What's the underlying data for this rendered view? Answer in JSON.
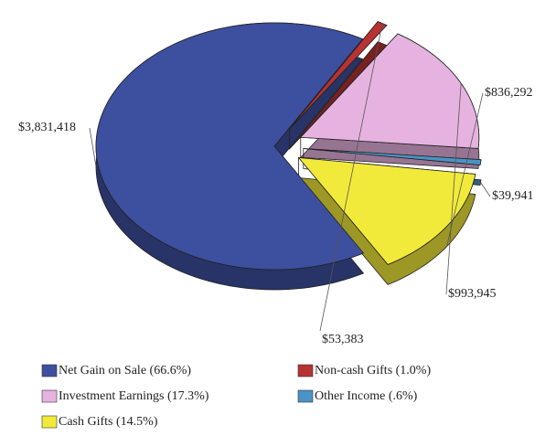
{
  "chart_data": {
    "type": "pie",
    "categories": [
      "Net Gain on Sale (66.6%)",
      "Non-cash Gifts (1.0%)",
      "Investment Earnings (17.3%)",
      "Other Income (.6%)",
      "Cash Gifts (14.5%)"
    ],
    "values": [
      3831418,
      53383,
      993945,
      39941,
      836292
    ],
    "value_labels": [
      "$3,831,418",
      "$53,383",
      "$993,945",
      "$39,941",
      "$836,292"
    ],
    "colors": [
      "#3d4f9f",
      "#b83232",
      "#e6b3e0",
      "#4a93c4",
      "#f2ea3a"
    ]
  }
}
